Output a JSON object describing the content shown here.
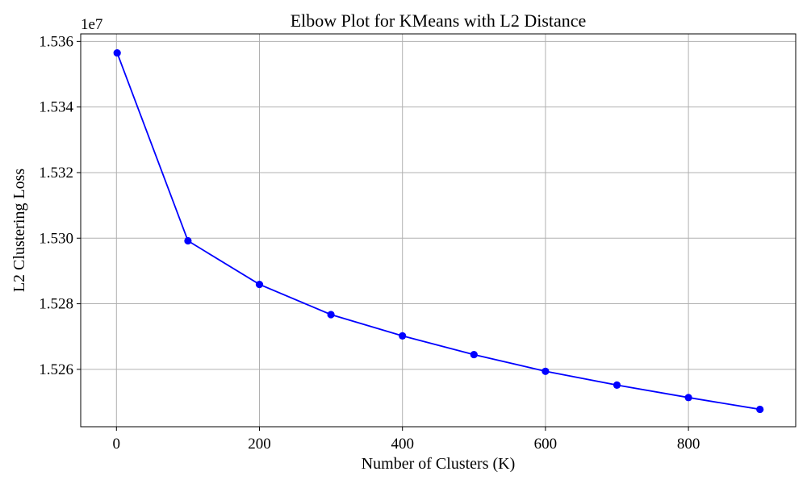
{
  "chart_data": {
    "type": "line",
    "title": "Elbow Plot for KMeans with L2 Distance",
    "xlabel": "Number of Clusters (K)",
    "ylabel": "L2 Clustering Loss",
    "y_offset_label": "1e7",
    "x": [
      1,
      100,
      200,
      300,
      400,
      500,
      600,
      700,
      800,
      900
    ],
    "series": [
      {
        "values": [
          15.3565,
          15.2992,
          15.2859,
          15.2767,
          15.2702,
          15.2645,
          15.2594,
          15.2552,
          15.2514,
          15.2478
        ],
        "color": "#0000ff",
        "marker": "circle"
      }
    ],
    "xlim": [
      -50,
      950
    ],
    "ylim": [
      15.2425,
      15.3623
    ],
    "xticks": [
      0,
      200,
      400,
      600,
      800
    ],
    "xtick_labels": [
      "0",
      "200",
      "400",
      "600",
      "800"
    ],
    "yticks": [
      15.26,
      15.28,
      15.3,
      15.32,
      15.34,
      15.36
    ],
    "ytick_labels": [
      "1.526",
      "1.528",
      "1.530",
      "1.532",
      "1.534",
      "1.536"
    ],
    "grid": true
  }
}
